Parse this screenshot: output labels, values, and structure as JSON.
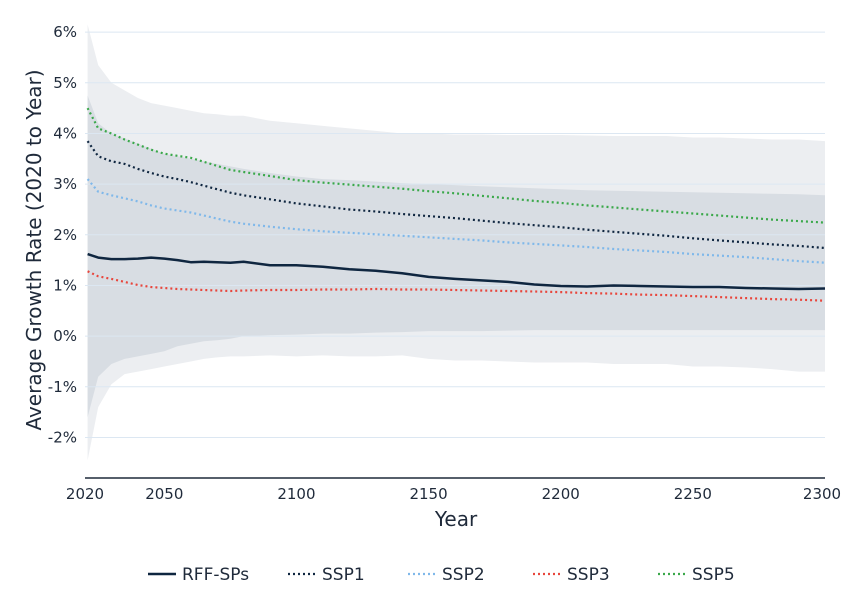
{
  "chart_data": {
    "type": "line",
    "xlabel": "Year",
    "ylabel": "Average Growth Rate (2020 to Year)",
    "xlim": [
      2020,
      2300
    ],
    "ylim": [
      -2.8,
      6.2
    ],
    "x_ticks": [
      2020,
      2050,
      2100,
      2150,
      2200,
      2250,
      2300
    ],
    "x_tick_labels": [
      "2020",
      "2050",
      "2100",
      "2150",
      "2200",
      "2250",
      "2300"
    ],
    "y_ticks": [
      -2,
      -1,
      0,
      1,
      2,
      3,
      4,
      5,
      6
    ],
    "y_tick_labels": [
      "-2%",
      "-1%",
      "0%",
      "1%",
      "2%",
      "3%",
      "4%",
      "5%",
      "6%"
    ],
    "grid": "horizontal",
    "legend_position": "bottom",
    "x": [
      2021,
      2025,
      2030,
      2035,
      2040,
      2045,
      2050,
      2055,
      2060,
      2065,
      2070,
      2075,
      2080,
      2090,
      2100,
      2110,
      2120,
      2130,
      2140,
      2150,
      2160,
      2170,
      2180,
      2190,
      2200,
      2210,
      2220,
      2230,
      2240,
      2250,
      2260,
      2270,
      2280,
      2290,
      2300
    ],
    "series": [
      {
        "name": "RFF-SPs",
        "style": "solid",
        "color": "#0f2640",
        "values": [
          1.62,
          1.55,
          1.52,
          1.52,
          1.53,
          1.55,
          1.53,
          1.5,
          1.46,
          1.47,
          1.46,
          1.45,
          1.47,
          1.4,
          1.4,
          1.37,
          1.32,
          1.29,
          1.24,
          1.17,
          1.13,
          1.1,
          1.07,
          1.02,
          0.99,
          0.98,
          1.0,
          0.99,
          0.98,
          0.97,
          0.97,
          0.95,
          0.94,
          0.93,
          0.94
        ]
      },
      {
        "name": "SSP1",
        "style": "dotted",
        "color": "#0f2640",
        "values": [
          3.85,
          3.55,
          3.45,
          3.4,
          3.3,
          3.22,
          3.15,
          3.1,
          3.04,
          2.97,
          2.9,
          2.83,
          2.78,
          2.7,
          2.62,
          2.56,
          2.5,
          2.46,
          2.41,
          2.37,
          2.33,
          2.28,
          2.23,
          2.19,
          2.15,
          2.1,
          2.06,
          2.02,
          1.98,
          1.93,
          1.89,
          1.85,
          1.81,
          1.78,
          1.74
        ]
      },
      {
        "name": "SSP2",
        "style": "dotted",
        "color": "#7fb8ea",
        "values": [
          3.1,
          2.85,
          2.78,
          2.72,
          2.66,
          2.58,
          2.52,
          2.48,
          2.44,
          2.38,
          2.32,
          2.26,
          2.22,
          2.16,
          2.11,
          2.07,
          2.04,
          2.01,
          1.98,
          1.95,
          1.92,
          1.89,
          1.85,
          1.82,
          1.79,
          1.76,
          1.72,
          1.69,
          1.66,
          1.62,
          1.59,
          1.56,
          1.52,
          1.48,
          1.45
        ]
      },
      {
        "name": "SSP3",
        "style": "dotted",
        "color": "#e8463c",
        "values": [
          1.28,
          1.18,
          1.13,
          1.07,
          1.01,
          0.97,
          0.95,
          0.93,
          0.92,
          0.91,
          0.9,
          0.89,
          0.9,
          0.91,
          0.91,
          0.92,
          0.92,
          0.93,
          0.92,
          0.92,
          0.91,
          0.9,
          0.89,
          0.88,
          0.87,
          0.85,
          0.84,
          0.82,
          0.81,
          0.79,
          0.77,
          0.75,
          0.73,
          0.72,
          0.7
        ]
      },
      {
        "name": "SSP5",
        "style": "dotted",
        "color": "#3aa84a",
        "values": [
          4.5,
          4.1,
          4.0,
          3.88,
          3.78,
          3.68,
          3.6,
          3.56,
          3.52,
          3.44,
          3.36,
          3.28,
          3.24,
          3.16,
          3.08,
          3.03,
          2.99,
          2.95,
          2.91,
          2.86,
          2.82,
          2.77,
          2.72,
          2.67,
          2.63,
          2.58,
          2.54,
          2.5,
          2.46,
          2.42,
          2.38,
          2.34,
          2.3,
          2.27,
          2.24
        ]
      }
    ],
    "bands": [
      {
        "fill": "#eceef1",
        "lower": [
          -2.45,
          -1.4,
          -0.95,
          -0.75,
          -0.7,
          -0.65,
          -0.6,
          -0.55,
          -0.5,
          -0.45,
          -0.42,
          -0.4,
          -0.4,
          -0.38,
          -0.4,
          -0.38,
          -0.4,
          -0.4,
          -0.38,
          -0.45,
          -0.48,
          -0.48,
          -0.5,
          -0.52,
          -0.52,
          -0.52,
          -0.55,
          -0.55,
          -0.55,
          -0.6,
          -0.6,
          -0.62,
          -0.65,
          -0.7,
          -0.7
        ],
        "upper": [
          6.15,
          5.35,
          5.0,
          4.85,
          4.7,
          4.6,
          4.55,
          4.5,
          4.45,
          4.4,
          4.38,
          4.35,
          4.35,
          4.25,
          4.2,
          4.15,
          4.1,
          4.05,
          4.0,
          4.0,
          3.98,
          3.98,
          3.97,
          3.97,
          3.97,
          3.96,
          3.95,
          3.95,
          3.95,
          3.92,
          3.92,
          3.9,
          3.88,
          3.88,
          3.85
        ]
      },
      {
        "fill": "#d8dde3",
        "lower": [
          -1.6,
          -0.8,
          -0.55,
          -0.45,
          -0.4,
          -0.35,
          -0.3,
          -0.2,
          -0.15,
          -0.1,
          -0.08,
          -0.05,
          0.0,
          0.02,
          0.03,
          0.05,
          0.05,
          0.07,
          0.08,
          0.1,
          0.1,
          0.1,
          0.11,
          0.12,
          0.12,
          0.12,
          0.12,
          0.12,
          0.12,
          0.12,
          0.12,
          0.12,
          0.12,
          0.12,
          0.12
        ],
        "upper": [
          4.75,
          4.2,
          4.0,
          3.9,
          3.8,
          3.7,
          3.6,
          3.55,
          3.5,
          3.45,
          3.4,
          3.35,
          3.3,
          3.22,
          3.15,
          3.1,
          3.08,
          3.05,
          3.02,
          3.0,
          2.98,
          2.96,
          2.94,
          2.92,
          2.9,
          2.88,
          2.87,
          2.86,
          2.85,
          2.84,
          2.83,
          2.82,
          2.81,
          2.8,
          2.78
        ]
      }
    ]
  }
}
